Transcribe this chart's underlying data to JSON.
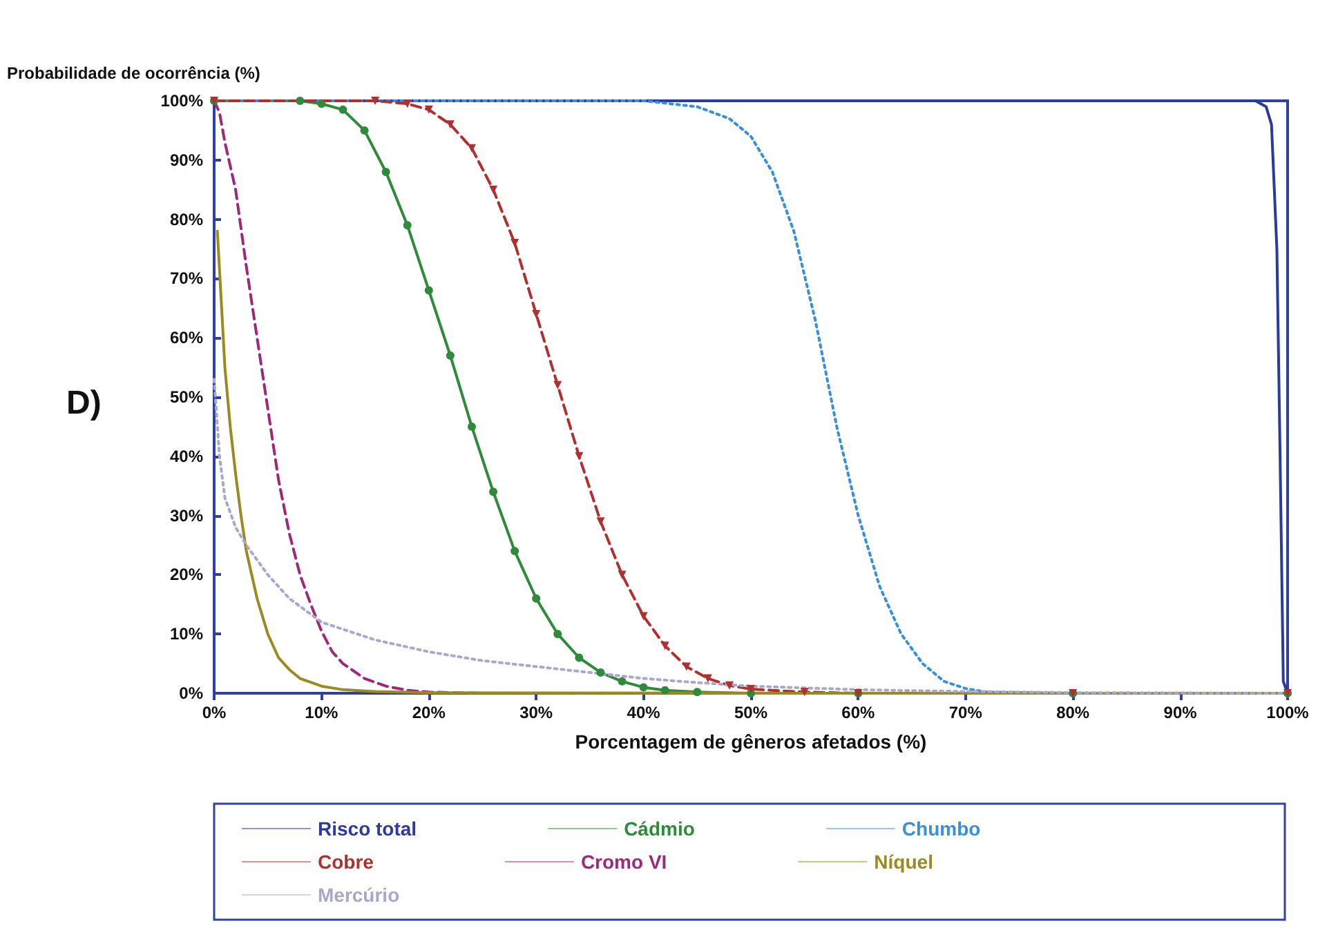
{
  "chart_data": {
    "type": "line",
    "ylabel": "Probabilidade de ocorrência (%)",
    "xlabel": "Porcentagem de gêneros afetados (%)",
    "annotations": [
      "D)"
    ],
    "xlim": [
      0,
      100
    ],
    "xticks": [
      {
        "value": 0,
        "label": "0%"
      },
      {
        "value": 10,
        "label": "10%"
      },
      {
        "value": 20,
        "label": "20%"
      },
      {
        "value": 30,
        "label": "30%"
      },
      {
        "value": 40,
        "label": "40%"
      },
      {
        "value": 50,
        "label": "50%"
      },
      {
        "value": 60,
        "label": "60%"
      },
      {
        "value": 70,
        "label": "70%"
      },
      {
        "value": 80,
        "label": "80%"
      },
      {
        "value": 90,
        "label": "90%"
      },
      {
        "value": 100,
        "label": "100%"
      }
    ],
    "ylim": [
      0,
      100
    ],
    "yticks": [
      {
        "value": 0,
        "label": "0%"
      },
      {
        "value": 10,
        "label": "10%"
      },
      {
        "value": 20,
        "label": "20%"
      },
      {
        "value": 30,
        "label": "30%"
      },
      {
        "value": 40,
        "label": "40%"
      },
      {
        "value": 50,
        "label": "50%"
      },
      {
        "value": 60,
        "label": "60%"
      },
      {
        "value": 70,
        "label": "70%"
      },
      {
        "value": 80,
        "label": "80%"
      },
      {
        "value": 90,
        "label": "90%"
      },
      {
        "value": 100,
        "label": "100%"
      }
    ],
    "grid": false,
    "legend": "bottom",
    "series": [
      {
        "name": "Risco total",
        "color": "#2b3a9e",
        "line_style": "solid",
        "marker": "none",
        "x": [
          0,
          20,
          40,
          60,
          80,
          97,
          98,
          98.5,
          99,
          99.3,
          99.6,
          100
        ],
        "values": [
          100,
          100,
          100,
          100,
          100,
          100,
          99,
          96,
          75,
          40,
          2,
          0
        ]
      },
      {
        "name": "Cádmio",
        "color": "#2e8b3a",
        "line_style": "solid",
        "marker": "circle",
        "x": [
          0,
          8,
          10,
          12,
          14,
          16,
          18,
          20,
          22,
          24,
          26,
          28,
          30,
          32,
          34,
          36,
          38,
          40,
          42,
          45,
          50,
          60,
          80,
          100
        ],
        "values": [
          100,
          100,
          99.5,
          98.5,
          95,
          88,
          79,
          68,
          57,
          45,
          34,
          24,
          16,
          10,
          6,
          3.5,
          2,
          1,
          0.5,
          0.2,
          0,
          0,
          0,
          0
        ]
      },
      {
        "name": "Chumbo",
        "color": "#3a8fd9",
        "line_style": "dotted",
        "marker": "none",
        "x": [
          0,
          20,
          40,
          45,
          48,
          50,
          52,
          54,
          56,
          58,
          60,
          62,
          64,
          66,
          68,
          70,
          72,
          80,
          100
        ],
        "values": [
          100,
          100,
          100,
          99,
          97,
          94,
          88,
          78,
          63,
          45,
          30,
          18,
          10,
          5,
          2,
          0.8,
          0.2,
          0,
          0
        ]
      },
      {
        "name": "Cobre",
        "color": "#b03030",
        "line_style": "dashed",
        "marker": "triangle",
        "x": [
          0,
          15,
          18,
          20,
          22,
          24,
          26,
          28,
          30,
          32,
          34,
          36,
          38,
          40,
          42,
          44,
          46,
          48,
          50,
          55,
          60,
          80,
          100
        ],
        "values": [
          100,
          100,
          99.5,
          98.5,
          96,
          92,
          85,
          76,
          64,
          52,
          40,
          29,
          20,
          13,
          8,
          4.5,
          2.5,
          1.3,
          0.7,
          0.2,
          0,
          0,
          0
        ]
      },
      {
        "name": "Cromo VI",
        "color": "#a0287a",
        "line_style": "dashed",
        "marker": "none",
        "x": [
          0,
          0.5,
          1,
          2,
          3,
          4,
          5,
          6,
          7,
          8,
          9,
          10,
          11,
          12,
          14,
          16,
          18,
          20,
          25,
          50,
          100
        ],
        "values": [
          100,
          98,
          93,
          85,
          72,
          60,
          48,
          36,
          27,
          20,
          15,
          10.5,
          7,
          5,
          2.5,
          1.2,
          0.5,
          0.2,
          0,
          0,
          0
        ]
      },
      {
        "name": "Níquel",
        "color": "#9a8a20",
        "line_style": "solid",
        "marker": "none",
        "x": [
          0.3,
          0.7,
          1,
          1.5,
          2,
          2.5,
          3,
          4,
          5,
          6,
          7,
          8,
          10,
          12,
          15,
          20,
          50,
          100
        ],
        "values": [
          78,
          65,
          55,
          45,
          37,
          30,
          24,
          16,
          10,
          6,
          4,
          2.5,
          1.2,
          0.6,
          0.3,
          0.1,
          0,
          0
        ]
      },
      {
        "name": "Mercúrio",
        "color": "#a8a8cc",
        "line_style": "dotted",
        "marker": "none",
        "x": [
          0,
          0.5,
          1,
          2,
          3,
          5,
          7,
          10,
          15,
          20,
          25,
          30,
          35,
          40,
          45,
          50,
          60,
          70,
          80,
          100
        ],
        "values": [
          53,
          40,
          33,
          28,
          25,
          20,
          16,
          12,
          9,
          7,
          5.5,
          4.5,
          3.5,
          2.5,
          1.8,
          1.2,
          0.6,
          0.3,
          0.1,
          0
        ]
      }
    ]
  }
}
